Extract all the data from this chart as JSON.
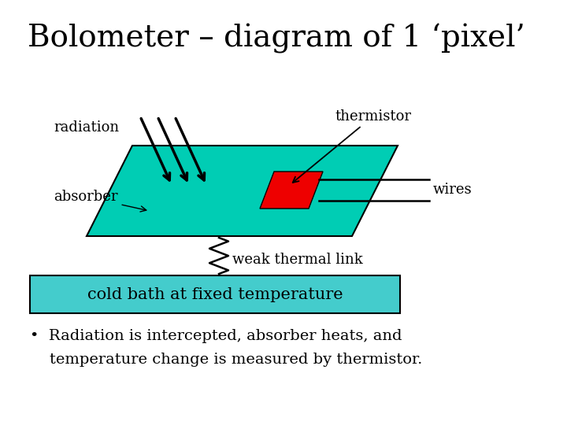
{
  "title": "Bolometer – diagram of 1 ‘pixel’",
  "title_fontsize": 28,
  "bg_color": "#ffffff",
  "teal_color": "#00CDB4",
  "red_color": "#EE0000",
  "cold_bath_color": "#44CCCC",
  "cold_bath_text": "cold bath at fixed temperature",
  "cold_bath_fontsize": 15,
  "label_fontsize": 13,
  "bullet_text_line1": "•  Radiation is intercepted, absorber heats, and",
  "bullet_text_line2": "    temperature change is measured by thermistor.",
  "bullet_fontsize": 14
}
